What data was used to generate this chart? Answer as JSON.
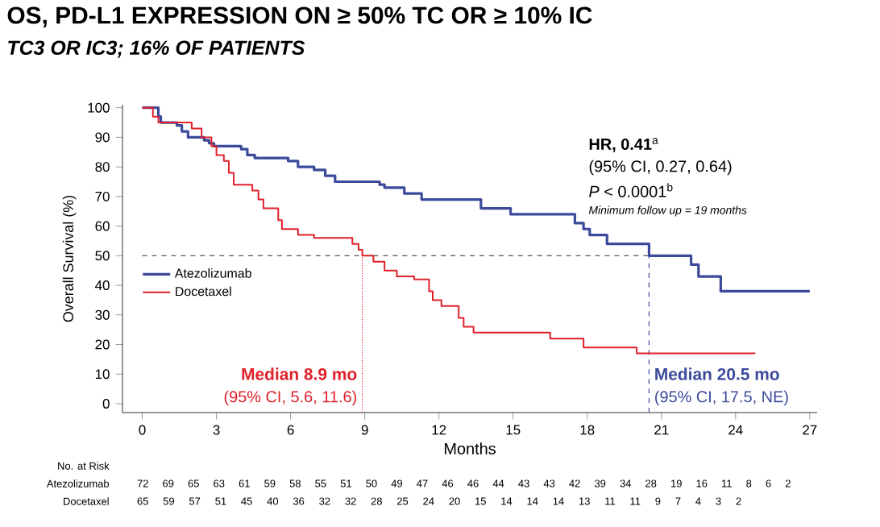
{
  "chart_data": {
    "type": "step",
    "title": "OS, PD-L1 EXPRESSION ON ≥ 50% TC OR ≥ 10% IC",
    "subtitle": "TC3 OR IC3; 16% OF PATIENTS",
    "xlabel": "Months",
    "ylabel": "Overall Survival (%)",
    "xlim": [
      -0.8,
      27.3
    ],
    "ylim": [
      -3,
      101
    ],
    "xticks": [
      0,
      3,
      6,
      9,
      12,
      15,
      18,
      21,
      24,
      27
    ],
    "yticks": [
      0,
      10,
      20,
      30,
      40,
      50,
      60,
      70,
      80,
      90,
      100
    ],
    "legend": "left",
    "series": [
      {
        "name": "Atezolizumab",
        "color": "#3b4a9a",
        "x": [
          0,
          0.65,
          0.75,
          1.4,
          1.6,
          1.85,
          2.5,
          2.7,
          2.9,
          4.0,
          4.25,
          4.55,
          5.9,
          6.3,
          6.95,
          7.4,
          7.8,
          9.6,
          9.8,
          10.6,
          11.3,
          13.7,
          14.9,
          17.5,
          17.85,
          18.1,
          18.8,
          20.5,
          22.2,
          22.5,
          23.4,
          27.0
        ],
        "values": [
          100,
          97,
          95,
          94,
          92,
          90,
          89,
          88,
          87,
          86,
          84,
          83,
          82,
          80,
          79,
          77,
          75,
          74,
          73,
          71,
          69,
          66,
          64,
          61,
          59,
          57,
          54,
          50,
          47,
          43,
          38,
          38
        ]
      },
      {
        "name": "Docetaxel",
        "color": "#e0202a",
        "x": [
          0,
          0.43,
          0.65,
          2.0,
          2.4,
          2.8,
          3.0,
          3.3,
          3.5,
          3.7,
          4.45,
          4.7,
          4.9,
          5.5,
          5.65,
          6.3,
          6.95,
          8.5,
          8.75,
          8.9,
          9.35,
          9.8,
          10.3,
          11.0,
          11.6,
          11.75,
          12.1,
          12.8,
          13.0,
          13.4,
          16.5,
          17.85,
          20.0,
          24.8
        ],
        "values": [
          100,
          97,
          95,
          93,
          90,
          87,
          84,
          82,
          78,
          74,
          72,
          69,
          66,
          62,
          59,
          57,
          56,
          54,
          52,
          50,
          48,
          45,
          43,
          42,
          38,
          35,
          33,
          29,
          26,
          24,
          22,
          19,
          17,
          17
        ]
      }
    ],
    "ref_lines": [
      {
        "axis": "y",
        "value": 50,
        "color": "#555555",
        "line_style": "dashed"
      },
      {
        "axis": "x",
        "value": 8.9,
        "color": "#e0202a",
        "line_style": "dotted"
      },
      {
        "axis": "x",
        "value": 20.5,
        "color": "#3b4a9a",
        "line_style": "dashed"
      }
    ],
    "annotations": [
      "**HR, 0.41**$^{a}$",
      "(95% CI, 0.27, 0.64)",
      "*P* < 0.0001$^{b}$",
      "*Minimum follow up = 19 months*",
      "Median 8.9 mo",
      "(95% CI, 5.6, 11.6)",
      "Median 20.5 mo",
      "(95% CI, 17.5, NE)",
      "No. at Risk",
      "72 69 65 63 61 59 58 55 51 50 49 47 46 46 44 43 43 42 39 34 28 19 16 11 8 6 2",
      "65 59 57 51 45 40 36 32 32 28 25 24 20 15 14 14 14 13 11 11 9 7 4 3 2"
    ]
  }
}
